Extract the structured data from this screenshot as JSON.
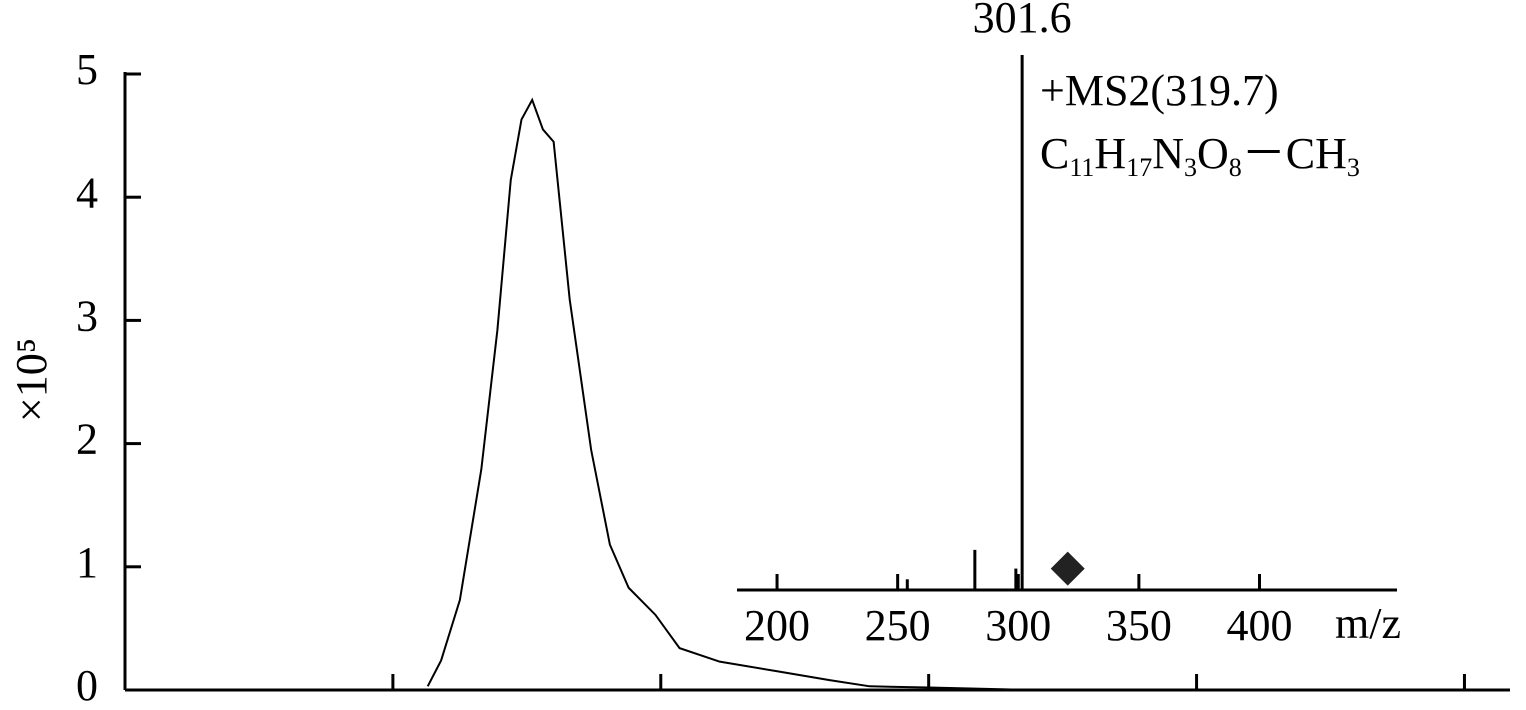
{
  "chart_data": [
    {
      "type": "line",
      "ylabel": "×10⁵",
      "color": "#000000",
      "x": [
        1.13,
        1.18,
        1.25,
        1.33,
        1.39,
        1.44,
        1.48,
        1.52,
        1.56,
        1.6,
        1.66,
        1.74,
        1.81,
        1.88,
        1.98,
        2.07,
        2.22,
        2.44,
        2.63,
        2.78,
        3.0,
        3.38
      ],
      "values": [
        0.03,
        0.24,
        0.73,
        1.79,
        2.92,
        4.14,
        4.63,
        4.79,
        4.55,
        4.45,
        3.17,
        1.95,
        1.18,
        0.83,
        0.61,
        0.34,
        0.23,
        0.15,
        0.08,
        0.03,
        0.02,
        0
      ],
      "xlim": [
        0,
        5.17
      ],
      "xticks": [
        1,
        2,
        3,
        4,
        5
      ],
      "ylim": [
        0,
        5
      ],
      "yticks": [
        0,
        1,
        2,
        3,
        4,
        5
      ]
    },
    {
      "type": "bar",
      "xlabel": "m/z",
      "color": "#000000",
      "x": [
        254,
        282,
        299,
        301.6
      ],
      "values": [
        2,
        7.5,
        4,
        100
      ],
      "annotations": [
        "+MS2(319.7)",
        "C11H17N3O8－CH3"
      ],
      "marker": {
        "x": 320.5,
        "y": 4
      },
      "xlim": [
        183.4,
        457
      ],
      "xticks": [
        200,
        250,
        300,
        350,
        400
      ],
      "ylim": [
        0,
        100
      ]
    }
  ]
}
